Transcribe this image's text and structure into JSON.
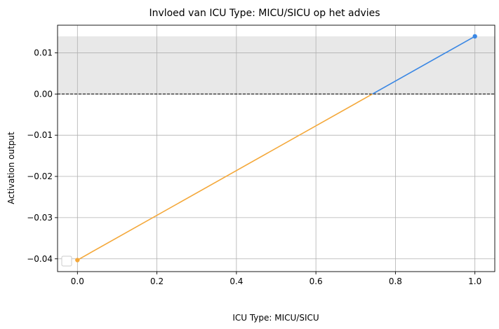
{
  "chart_data": {
    "type": "line",
    "title": "Invloed van ICU Type: MICU/SICU op het advies",
    "xlabel": "ICU Type: MICU/SICU",
    "ylabel": "Activation output",
    "xlim": [
      -0.05,
      1.05
    ],
    "ylim": [
      -0.0431,
      0.0167
    ],
    "x_ticks": [
      {
        "value": 0.0,
        "label": "0.0"
      },
      {
        "value": 0.2,
        "label": "0.2"
      },
      {
        "value": 0.4,
        "label": "0.4"
      },
      {
        "value": 0.6,
        "label": "0.6"
      },
      {
        "value": 0.8,
        "label": "0.8"
      },
      {
        "value": 1.0,
        "label": "1.0"
      }
    ],
    "y_ticks": [
      {
        "value": 0.01,
        "label": "0.01"
      },
      {
        "value": 0.0,
        "label": "0.00"
      },
      {
        "value": -0.01,
        "label": "−0.01"
      },
      {
        "value": -0.02,
        "label": "−0.02"
      },
      {
        "value": -0.03,
        "label": "−0.03"
      },
      {
        "value": -0.04,
        "label": "−0.04"
      }
    ],
    "grid": true,
    "reference_line": {
      "y": 0.0,
      "style": "dashed",
      "color": "#000000"
    },
    "shaded_band": {
      "y_from": 0.0,
      "y_to": 0.014,
      "color": "#e8e8e8"
    },
    "x": [
      0.0,
      1.0
    ],
    "y": [
      -0.0403,
      0.014
    ],
    "colors": {
      "negative": "#f4a83a",
      "positive": "#3a87e4"
    },
    "legend": {
      "position": "bottom-left",
      "entries": []
    }
  }
}
